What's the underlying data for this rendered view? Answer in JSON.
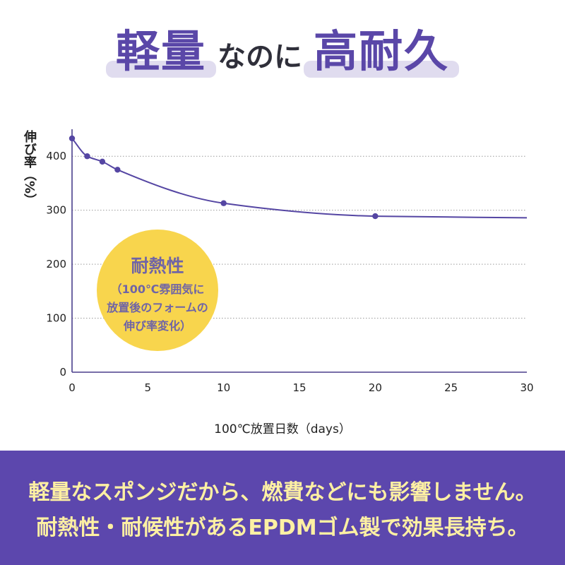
{
  "headline": {
    "word1": "軽量",
    "connector": "なのに",
    "word2": "高耐久"
  },
  "colors": {
    "accent_purple": "#5a47a8",
    "highlight_lavender": "#e0dcef",
    "line_purple": "#5546a3",
    "badge_yellow": "#f8d54d",
    "badge_text": "#6f64a6",
    "footer_bg": "#5c47ad",
    "footer_text": "#fdf0a3"
  },
  "chart_data": {
    "type": "line",
    "xlabel": "100℃放置日数（days）",
    "ylabel": "伸び率（%）",
    "xlim": [
      0,
      30
    ],
    "ylim": [
      0,
      450
    ],
    "xticks": [
      0,
      5,
      10,
      15,
      20,
      25,
      30
    ],
    "yticks": [
      0,
      100,
      200,
      300,
      400
    ],
    "grid": true,
    "series": [
      {
        "points": [
          {
            "x": 0,
            "y": 433,
            "marker": true
          },
          {
            "x": 1,
            "y": 400,
            "marker": true
          },
          {
            "x": 2,
            "y": 390,
            "marker": true
          },
          {
            "x": 3,
            "y": 375,
            "marker": true
          },
          {
            "x": 10,
            "y": 313,
            "marker": true
          },
          {
            "x": 20,
            "y": 289,
            "marker": true
          },
          {
            "x": 30,
            "y": 286,
            "marker": false
          }
        ]
      }
    ]
  },
  "badge": {
    "title": "耐熱性",
    "lines": [
      "（100℃雰囲気に",
      "放置後のフォームの",
      "伸び率変化）"
    ]
  },
  "footer": {
    "lines": [
      "軽量なスポンジだから、燃費などにも影響しません。",
      "耐熱性・耐候性があるEPDMゴム製で効果長持ち。"
    ]
  }
}
